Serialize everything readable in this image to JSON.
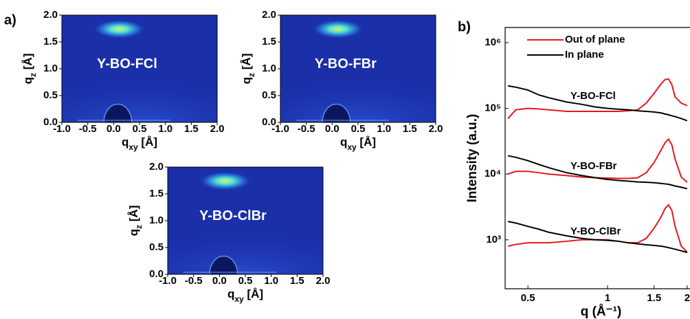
{
  "chart_data": [
    {
      "type": "image",
      "panel_label": "a)",
      "annotation": "Y-BO-FCl",
      "xlabel": {
        "base": "q",
        "sub": "xy",
        "rest": " [Å]"
      },
      "ylabel": {
        "base": "q",
        "sub": "z",
        "rest": " [Å]"
      },
      "xlim": [
        -1,
        2
      ],
      "ylim": [
        0,
        2
      ],
      "xticks": [
        {
          "value": -1,
          "label": "-1.0"
        },
        -0.5,
        {
          "value": 0,
          "label": "0.0"
        },
        0.5,
        {
          "value": 1,
          "label": "1.0"
        },
        1.5,
        {
          "value": 2,
          "label": "2.0"
        }
      ],
      "yticks": [
        {
          "value": 0,
          "label": "0.0"
        },
        0.5,
        {
          "value": 1,
          "label": "1.0"
        },
        1.5,
        {
          "value": 2,
          "label": "2.0"
        }
      ]
    },
    {
      "type": "image",
      "annotation": "Y-BO-FBr",
      "xlabel": {
        "base": "q",
        "sub": "xy",
        "rest": " [Å]"
      },
      "ylabel": {
        "base": "q",
        "sub": "z",
        "rest": " [Å]"
      },
      "xlim": [
        -1,
        2
      ],
      "ylim": [
        0,
        2
      ],
      "xticks": [
        {
          "value": -1,
          "label": "-1.0"
        },
        -0.5,
        {
          "value": 0,
          "label": "0.0"
        },
        0.5,
        {
          "value": 1,
          "label": "1.0"
        },
        1.5,
        {
          "value": 2,
          "label": "2.0"
        }
      ],
      "yticks": [
        {
          "value": 0,
          "label": "0.0"
        },
        0.5,
        {
          "value": 1,
          "label": "1.0"
        },
        1.5,
        {
          "value": 2,
          "label": "2.0"
        }
      ]
    },
    {
      "type": "image",
      "annotation": "Y-BO-ClBr",
      "xlabel": {
        "base": "q",
        "sub": "xy",
        "rest": " [Å]"
      },
      "ylabel": {
        "base": "q",
        "sub": "z",
        "rest": " [Å]"
      },
      "xlim": [
        -1,
        2
      ],
      "ylim": [
        0,
        2
      ],
      "xticks": [
        {
          "value": -1,
          "label": "-1.0"
        },
        -0.5,
        {
          "value": 0,
          "label": "0.0"
        },
        0.5,
        {
          "value": 1,
          "label": "1.0"
        },
        1.5,
        {
          "value": 2,
          "label": "2.0"
        }
      ],
      "yticks": [
        {
          "value": 0,
          "label": "0.0"
        },
        0.5,
        {
          "value": 1,
          "label": "1.0"
        },
        1.5,
        {
          "value": 2,
          "label": "2.0"
        }
      ]
    },
    {
      "type": "line",
      "panel_label": "b)",
      "xlabel": "q (Å⁻¹)",
      "ylabel": "Intensity (a.u.)",
      "xscale": "log",
      "yscale": "log",
      "xlim": [
        0.41,
        2.05
      ],
      "ylim": [
        180,
        1700000
      ],
      "xticks": [
        0.5,
        1,
        1.5,
        2
      ],
      "yticks": [
        {
          "value": 1000,
          "label": "10³"
        },
        {
          "value": 10000,
          "label": "10⁴"
        },
        {
          "value": 100000,
          "label": "10⁵"
        },
        {
          "value": 1000000,
          "label": "10⁶"
        }
      ],
      "samples": [
        "Y-BO-FCl",
        "Y-BO-FBr",
        "Y-BO-ClBr"
      ],
      "x": [
        0.42,
        0.45,
        0.5,
        0.55,
        0.6,
        0.7,
        0.8,
        0.9,
        1.0,
        1.1,
        1.2,
        1.3,
        1.4,
        1.5,
        1.6,
        1.65,
        1.7,
        1.75,
        1.8,
        1.9,
        2.0
      ],
      "series": [
        {
          "name": "Out of plane",
          "color": "#e8161b",
          "values": [
            [
              70000,
              95000,
              100000,
              98000,
              95000,
              90000,
              90000,
              90000,
              90000,
              90000,
              92000,
              95000,
              120000,
              170000,
              240000,
              275000,
              280000,
              230000,
              150000,
              120000,
              110000
            ],
            [
              10000,
              11000,
              11000,
              10500,
              10000,
              9500,
              9000,
              8800,
              8700,
              8600,
              8600,
              8800,
              10500,
              15000,
              24000,
              30000,
              34000,
              28000,
              17000,
              9000,
              7500
            ],
            [
              800,
              850,
              900,
              900,
              900,
              950,
              1000,
              1000,
              1000,
              950,
              900,
              900,
              1050,
              1500,
              2300,
              3000,
              3400,
              2800,
              1600,
              800,
              650
            ]
          ]
        },
        {
          "name": "In plane",
          "color": "#000000",
          "values": [
            [
              220000,
              210000,
              190000,
              160000,
              145000,
              125000,
              115000,
              105000,
              100000,
              97000,
              95000,
              92000,
              90000,
              88000,
              85000,
              82000,
              80000,
              77000,
              75000,
              70000,
              65000
            ],
            [
              19000,
              18000,
              16000,
              14000,
              12500,
              10500,
              9500,
              8800,
              8300,
              8000,
              7800,
              7600,
              7500,
              7400,
              7200,
              7100,
              7000,
              6800,
              6600,
              6300,
              6000
            ],
            [
              1900,
              1800,
              1600,
              1450,
              1300,
              1150,
              1050,
              1000,
              980,
              950,
              900,
              870,
              840,
              820,
              800,
              780,
              760,
              740,
              720,
              680,
              640
            ]
          ]
        }
      ]
    }
  ]
}
